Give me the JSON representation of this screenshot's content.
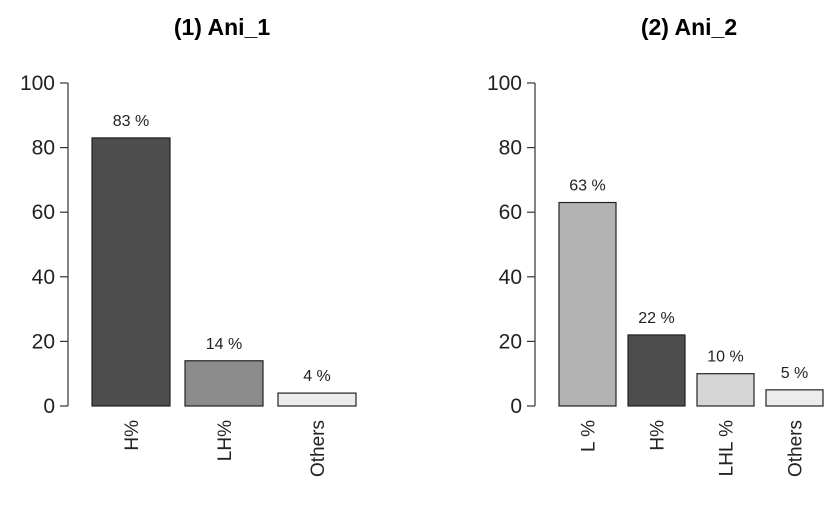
{
  "chart_data": [
    {
      "type": "bar",
      "title": "(1) Ani_1",
      "categories": [
        "H%",
        "LH%",
        "Others"
      ],
      "values": [
        83,
        14,
        4
      ],
      "data_labels": [
        "83 %",
        "14 %",
        "4 %"
      ],
      "colors": [
        "#4d4d4d",
        "#8c8c8c",
        "#ececec"
      ],
      "ylim": [
        0,
        100
      ],
      "yticks": [
        0,
        20,
        40,
        60,
        80,
        100
      ],
      "xlabel": "",
      "ylabel": "",
      "grid": false
    },
    {
      "type": "bar",
      "title": "(2) Ani_2",
      "categories": [
        "L %",
        "H%",
        "LHL %",
        "Others"
      ],
      "values": [
        63,
        22,
        10,
        5
      ],
      "data_labels": [
        "63 %",
        "22 %",
        "10 %",
        "5 %"
      ],
      "colors": [
        "#b3b3b3",
        "#4d4d4d",
        "#d6d6d6",
        "#ececec"
      ],
      "ylim": [
        0,
        100
      ],
      "yticks": [
        0,
        20,
        40,
        60,
        80,
        100
      ],
      "xlabel": "",
      "ylabel": "",
      "grid": false
    }
  ]
}
